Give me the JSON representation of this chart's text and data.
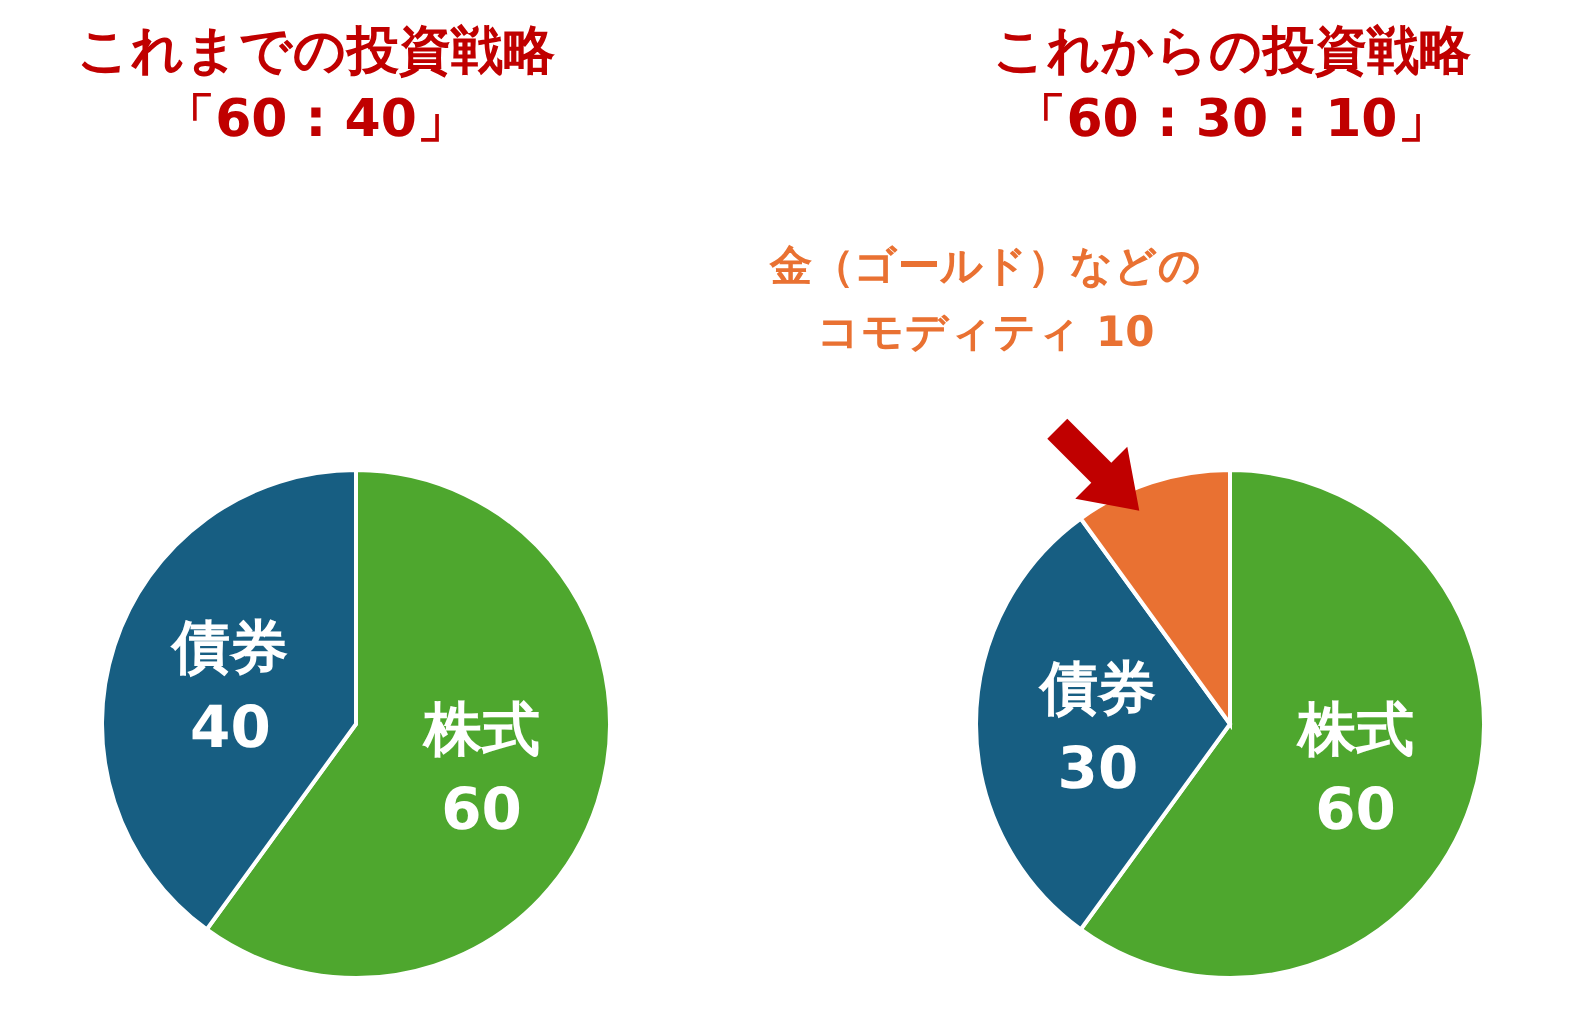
{
  "chart_data": [
    {
      "type": "pie",
      "title": "これまでの投資戦略",
      "subtitle": "「60 : 40」",
      "categories": [
        "株式",
        "債券"
      ],
      "values": [
        60,
        40
      ],
      "colors": [
        "#4ea72e",
        "#175e82"
      ],
      "data_labels": true
    },
    {
      "type": "pie",
      "title": "これからの投資戦略",
      "subtitle": "「60 : 30 : 10」",
      "categories": [
        "株式",
        "債券",
        "金（ゴールド）などのコモディティ"
      ],
      "values": [
        60,
        30,
        10
      ],
      "colors": [
        "#4ea72e",
        "#175e82",
        "#e97132"
      ],
      "data_labels": true
    }
  ]
}
